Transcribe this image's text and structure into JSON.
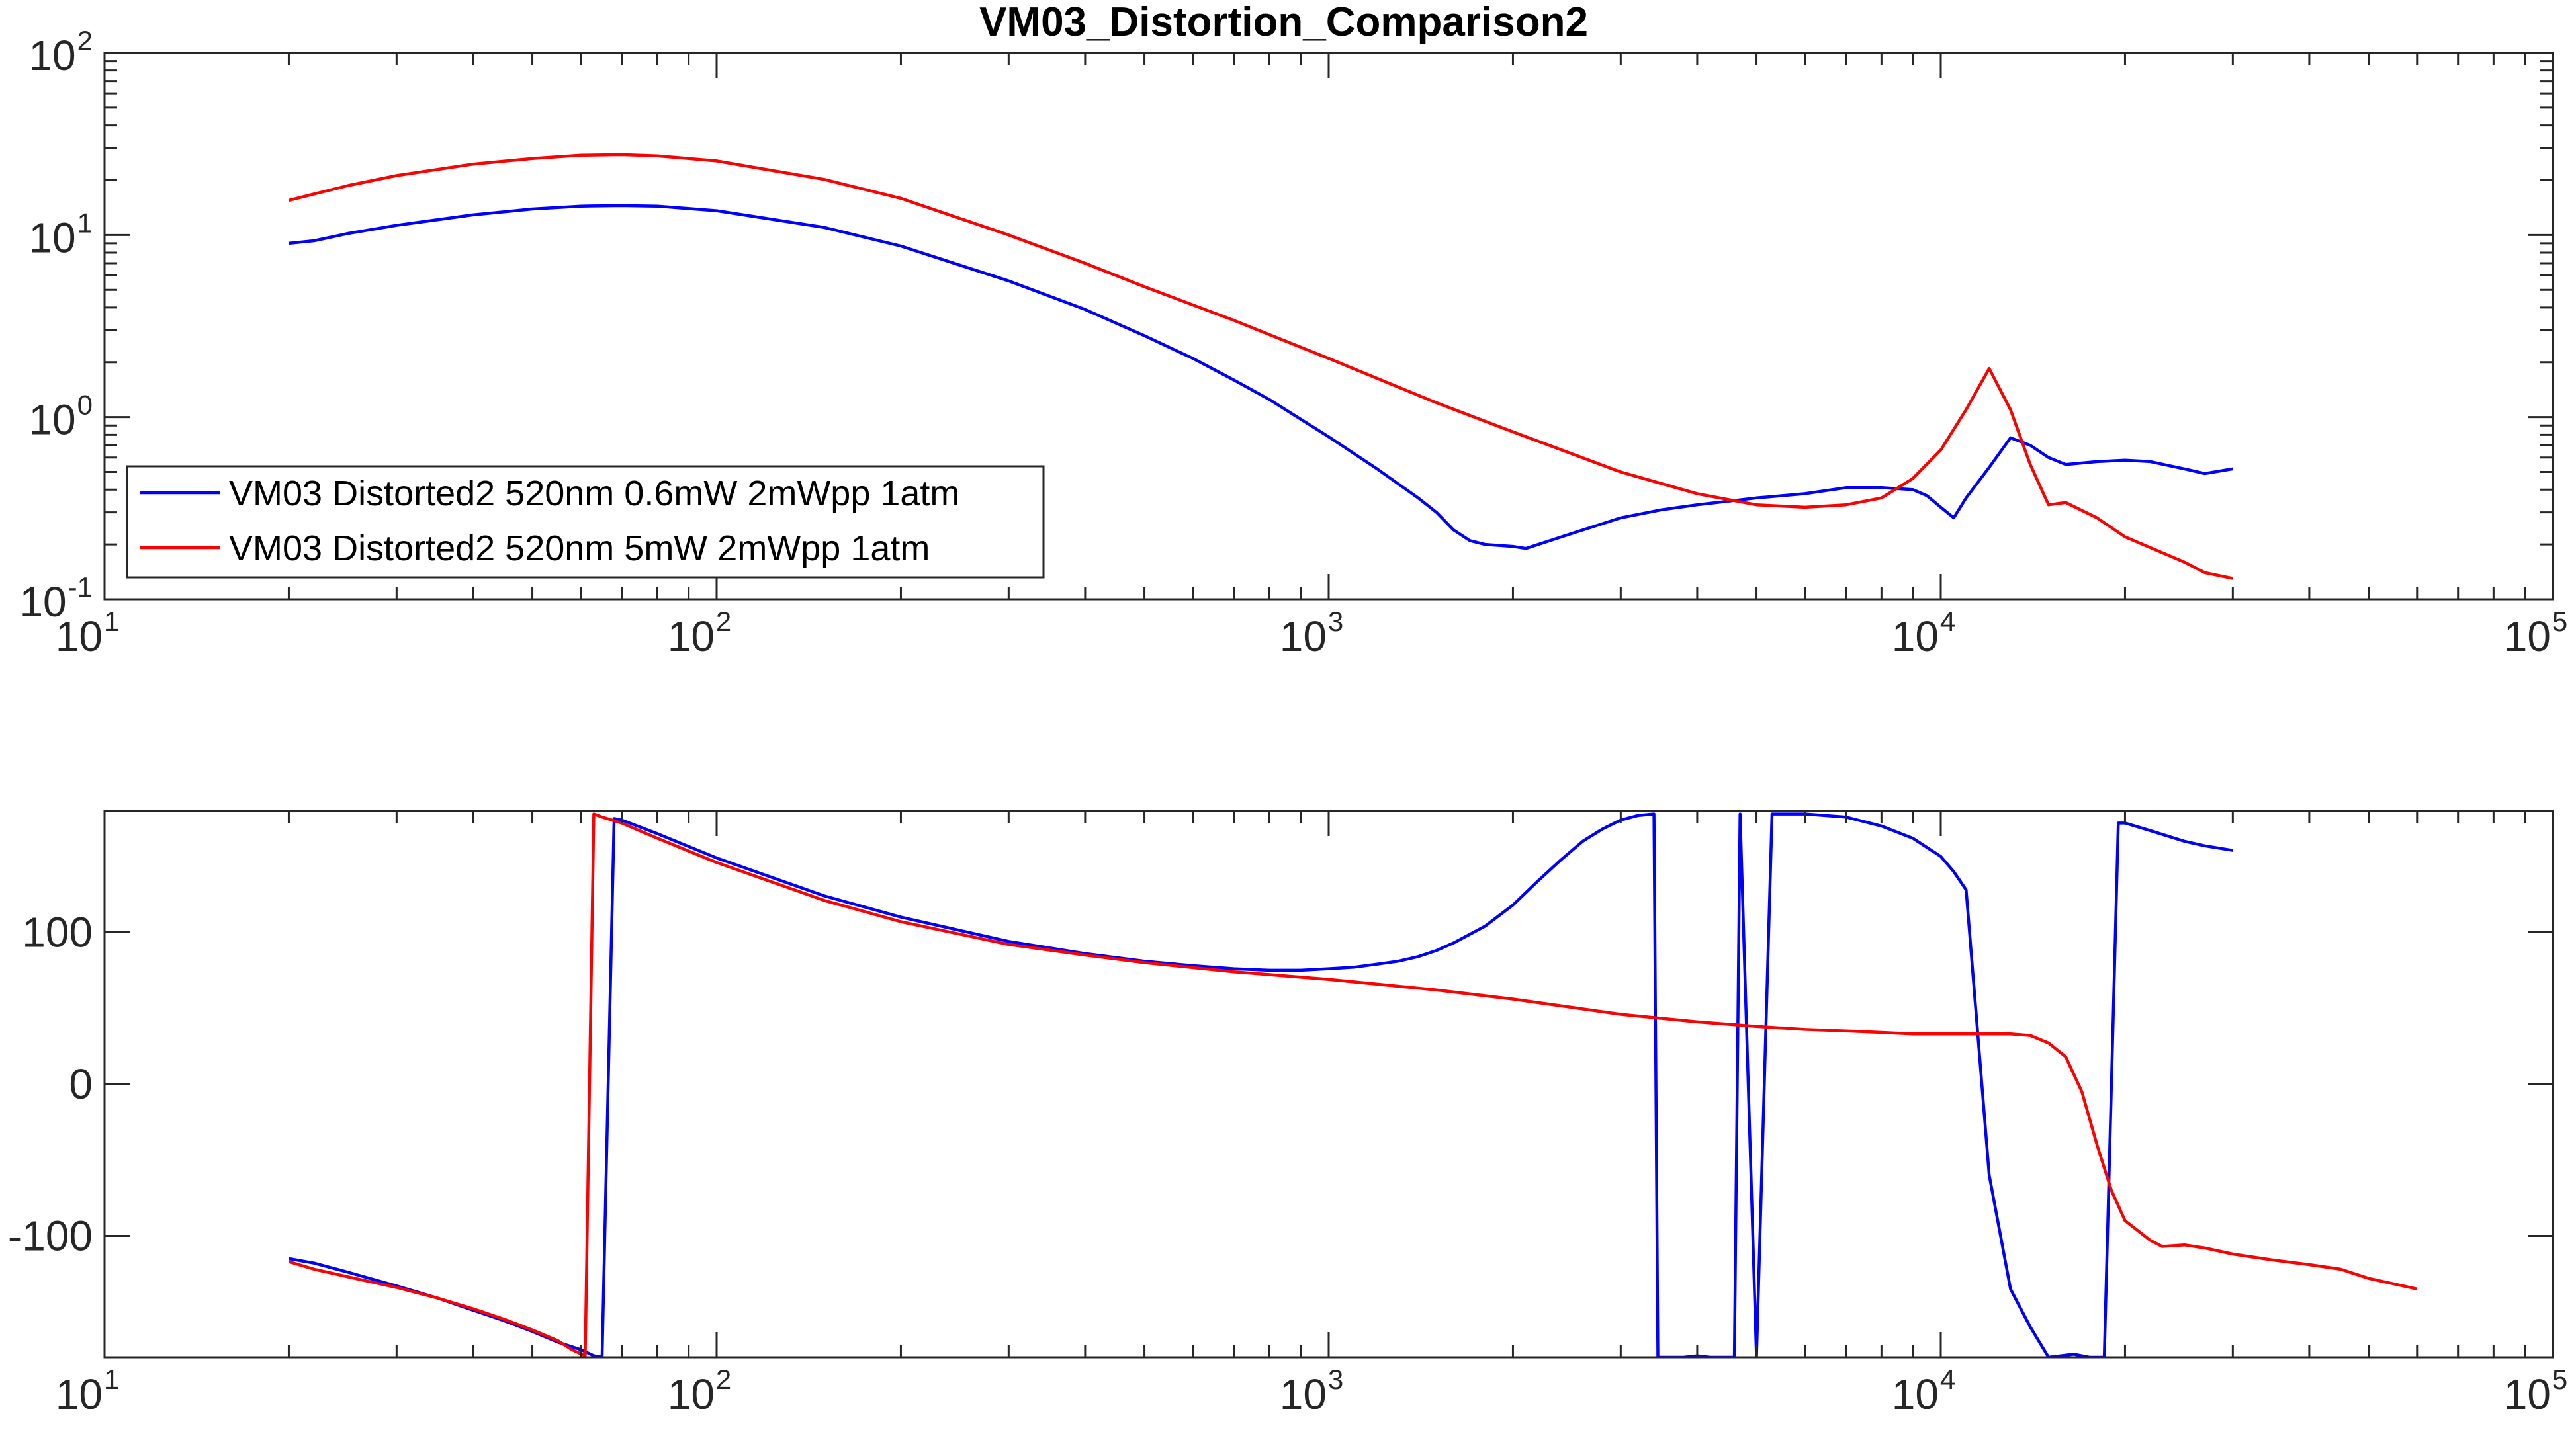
{
  "title": "VM03_Distortion_Comparison2",
  "colors": {
    "series1": "#0000ff",
    "series2": "#ff0000",
    "axis": "#262626"
  },
  "chart_data": [
    {
      "type": "line",
      "xscale": "log",
      "yscale": "log",
      "xlim": [
        10,
        100000
      ],
      "ylim": [
        0.1,
        100
      ],
      "x_ticks": [
        {
          "base": "10",
          "exp": "1",
          "value": 10
        },
        {
          "base": "10",
          "exp": "2",
          "value": 100
        },
        {
          "base": "10",
          "exp": "3",
          "value": 1000
        },
        {
          "base": "10",
          "exp": "4",
          "value": 10000
        },
        {
          "base": "10",
          "exp": "5",
          "value": 100000
        }
      ],
      "y_ticks": [
        {
          "base": "10",
          "exp": "-1",
          "value": 0.1
        },
        {
          "base": "10",
          "exp": "0",
          "value": 1
        },
        {
          "base": "10",
          "exp": "1",
          "value": 10
        },
        {
          "base": "10",
          "exp": "2",
          "value": 100
        }
      ],
      "legend_location": "bottom-left",
      "series": [
        {
          "name": "VM03 Distorted2 520nm 0.6mW 2mWpp 1atm",
          "color": "#0000ff",
          "points": [
            [
              20,
              9.0
            ],
            [
              22,
              9.3
            ],
            [
              25,
              10.2
            ],
            [
              30,
              11.3
            ],
            [
              40,
              12.9
            ],
            [
              50,
              13.9
            ],
            [
              60,
              14.4
            ],
            [
              70,
              14.5
            ],
            [
              80,
              14.4
            ],
            [
              100,
              13.6
            ],
            [
              150,
              11.0
            ],
            [
              200,
              8.7
            ],
            [
              300,
              5.6
            ],
            [
              400,
              3.9
            ],
            [
              500,
              2.8
            ],
            [
              600,
              2.1
            ],
            [
              700,
              1.6
            ],
            [
              800,
              1.25
            ],
            [
              1000,
              0.78
            ],
            [
              1200,
              0.52
            ],
            [
              1400,
              0.36
            ],
            [
              1500,
              0.3
            ],
            [
              1600,
              0.24
            ],
            [
              1700,
              0.21
            ],
            [
              1800,
              0.2
            ],
            [
              2000,
              0.195
            ],
            [
              2100,
              0.19
            ],
            [
              2500,
              0.23
            ],
            [
              3000,
              0.28
            ],
            [
              3500,
              0.31
            ],
            [
              4000,
              0.33
            ],
            [
              5000,
              0.36
            ],
            [
              6000,
              0.38
            ],
            [
              7000,
              0.41
            ],
            [
              8000,
              0.41
            ],
            [
              9000,
              0.4
            ],
            [
              9500,
              0.37
            ],
            [
              10000,
              0.32
            ],
            [
              10500,
              0.28
            ],
            [
              11000,
              0.36
            ],
            [
              12000,
              0.53
            ],
            [
              13000,
              0.77
            ],
            [
              14000,
              0.7
            ],
            [
              15000,
              0.6
            ],
            [
              16000,
              0.55
            ],
            [
              18000,
              0.57
            ],
            [
              20000,
              0.58
            ],
            [
              22000,
              0.57
            ],
            [
              25000,
              0.52
            ],
            [
              27000,
              0.49
            ],
            [
              30000,
              0.52
            ]
          ]
        },
        {
          "name": "VM03 Distorted2 520nm 5mW 2mWpp 1atm",
          "color": "#ff0000",
          "points": [
            [
              20,
              15.5
            ],
            [
              22,
              16.8
            ],
            [
              25,
              18.7
            ],
            [
              30,
              21.2
            ],
            [
              40,
              24.5
            ],
            [
              50,
              26.3
            ],
            [
              60,
              27.4
            ],
            [
              70,
              27.6
            ],
            [
              80,
              27.2
            ],
            [
              100,
              25.5
            ],
            [
              150,
              20.2
            ],
            [
              200,
              15.9
            ],
            [
              300,
              10.0
            ],
            [
              400,
              7.0
            ],
            [
              500,
              5.2
            ],
            [
              700,
              3.4
            ],
            [
              1000,
              2.1
            ],
            [
              1500,
              1.2
            ],
            [
              2000,
              0.83
            ],
            [
              3000,
              0.5
            ],
            [
              4000,
              0.38
            ],
            [
              5000,
              0.33
            ],
            [
              6000,
              0.32
            ],
            [
              7000,
              0.33
            ],
            [
              8000,
              0.36
            ],
            [
              9000,
              0.46
            ],
            [
              10000,
              0.66
            ],
            [
              11000,
              1.1
            ],
            [
              12000,
              1.85
            ],
            [
              13000,
              1.1
            ],
            [
              14000,
              0.55
            ],
            [
              15000,
              0.33
            ],
            [
              16000,
              0.34
            ],
            [
              18000,
              0.28
            ],
            [
              20000,
              0.22
            ],
            [
              25000,
              0.16
            ],
            [
              27000,
              0.14
            ],
            [
              30000,
              0.13
            ]
          ]
        }
      ]
    },
    {
      "type": "line",
      "xscale": "log",
      "xlim": [
        10,
        100000
      ],
      "ylim": [
        -180,
        180
      ],
      "x_ticks": [
        {
          "base": "10",
          "exp": "1",
          "value": 10
        },
        {
          "base": "10",
          "exp": "2",
          "value": 100
        },
        {
          "base": "10",
          "exp": "3",
          "value": 1000
        },
        {
          "base": "10",
          "exp": "4",
          "value": 10000
        },
        {
          "base": "10",
          "exp": "5",
          "value": 100000
        }
      ],
      "y_ticks": [
        {
          "label": "-100",
          "value": -100
        },
        {
          "label": "0",
          "value": 0
        },
        {
          "label": "100",
          "value": 100
        }
      ],
      "series": [
        {
          "color": "#0000ff",
          "points": [
            [
              20,
              -115
            ],
            [
              22,
              -118
            ],
            [
              25,
              -124
            ],
            [
              30,
              -133
            ],
            [
              35,
              -141
            ],
            [
              40,
              -149
            ],
            [
              45,
              -156
            ],
            [
              50,
              -163
            ],
            [
              55,
              -170
            ],
            [
              60,
              -175
            ],
            [
              63,
              -179
            ],
            [
              65,
              -180
            ],
            [
              68,
              175
            ],
            [
              70,
              174
            ],
            [
              80,
              165
            ],
            [
              100,
              149
            ],
            [
              150,
              124
            ],
            [
              200,
              110
            ],
            [
              300,
              94
            ],
            [
              400,
              86
            ],
            [
              500,
              81
            ],
            [
              600,
              78
            ],
            [
              700,
              76
            ],
            [
              800,
              75
            ],
            [
              900,
              75
            ],
            [
              1000,
              76
            ],
            [
              1100,
              77
            ],
            [
              1200,
              79
            ],
            [
              1300,
              81
            ],
            [
              1400,
              84
            ],
            [
              1500,
              88
            ],
            [
              1600,
              93
            ],
            [
              1800,
              104
            ],
            [
              2000,
              118
            ],
            [
              2200,
              134
            ],
            [
              2400,
              148
            ],
            [
              2600,
              160
            ],
            [
              2800,
              168
            ],
            [
              3000,
              174
            ],
            [
              3200,
              177
            ],
            [
              3400,
              178
            ],
            [
              3450,
              -180
            ],
            [
              3800,
              -180
            ],
            [
              4000,
              -179
            ],
            [
              4200,
              -180
            ],
            [
              4600,
              -180
            ],
            [
              4700,
              178
            ],
            [
              5000,
              -180
            ],
            [
              5300,
              178
            ],
            [
              6000,
              178
            ],
            [
              7000,
              176
            ],
            [
              8000,
              170
            ],
            [
              9000,
              162
            ],
            [
              10000,
              150
            ],
            [
              10500,
              140
            ],
            [
              11000,
              128
            ],
            [
              12000,
              -60
            ],
            [
              13000,
              -135
            ],
            [
              14000,
              -160
            ],
            [
              15000,
              -180
            ],
            [
              16500,
              -178
            ],
            [
              17500,
              -180
            ],
            [
              18500,
              -180
            ],
            [
              19500,
              172
            ],
            [
              20000,
              172
            ],
            [
              22000,
              167
            ],
            [
              25000,
              160
            ],
            [
              27000,
              157
            ],
            [
              30000,
              154
            ]
          ]
        },
        {
          "color": "#ff0000",
          "points": [
            [
              20,
              -117
            ],
            [
              22,
              -122
            ],
            [
              25,
              -127
            ],
            [
              30,
              -134
            ],
            [
              35,
              -141
            ],
            [
              40,
              -148
            ],
            [
              45,
              -155
            ],
            [
              50,
              -162
            ],
            [
              55,
              -169
            ],
            [
              58,
              -175
            ],
            [
              61,
              -179
            ],
            [
              63,
              178
            ],
            [
              65,
              176
            ],
            [
              70,
              172
            ],
            [
              80,
              162
            ],
            [
              100,
              146
            ],
            [
              150,
              121
            ],
            [
              200,
              107
            ],
            [
              300,
              92
            ],
            [
              400,
              85
            ],
            [
              500,
              80
            ],
            [
              700,
              74
            ],
            [
              1000,
              69
            ],
            [
              1500,
              62
            ],
            [
              2000,
              56
            ],
            [
              3000,
              46
            ],
            [
              4000,
              41
            ],
            [
              5000,
              38
            ],
            [
              6000,
              36
            ],
            [
              7000,
              35
            ],
            [
              8000,
              34
            ],
            [
              9000,
              33
            ],
            [
              10000,
              33
            ],
            [
              11000,
              33
            ],
            [
              12000,
              33
            ],
            [
              13000,
              33
            ],
            [
              14000,
              32
            ],
            [
              15000,
              27
            ],
            [
              16000,
              18
            ],
            [
              17000,
              -5
            ],
            [
              18000,
              -40
            ],
            [
              19000,
              -70
            ],
            [
              20000,
              -90
            ],
            [
              22000,
              -103
            ],
            [
              23000,
              -107
            ],
            [
              25000,
              -106
            ],
            [
              27000,
              -108
            ],
            [
              30000,
              -112
            ],
            [
              35000,
              -116
            ],
            [
              40000,
              -119
            ],
            [
              45000,
              -122
            ],
            [
              50000,
              -128
            ],
            [
              60000,
              -135
            ]
          ]
        }
      ]
    }
  ]
}
